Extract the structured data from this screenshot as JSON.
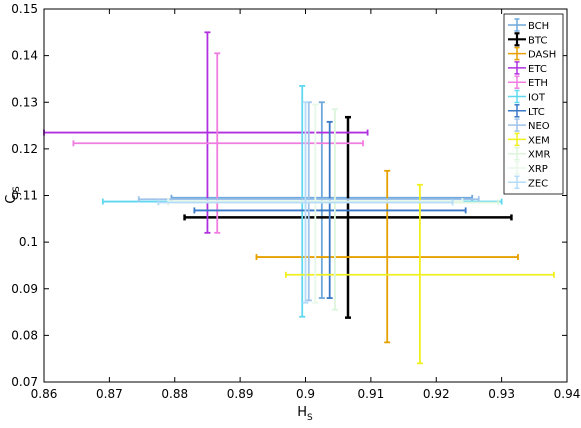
{
  "chart_data": {
    "type": "scatter",
    "title": "",
    "xlabel": "H",
    "xlabel_sub": "S",
    "ylabel": "C",
    "ylabel_sub": "JS",
    "xlim": [
      0.86,
      0.94
    ],
    "ylim": [
      0.07,
      0.15
    ],
    "xticks": [
      "0.86",
      "0.87",
      "0.88",
      "0.89",
      "0.9",
      "0.91",
      "0.92",
      "0.93",
      "0.94"
    ],
    "yticks": [
      "0.07",
      "0.08",
      "0.09",
      "0.1",
      "0.11",
      "0.12",
      "0.13",
      "0.14",
      "0.15"
    ],
    "grid": false,
    "legend_position": "top-right",
    "series": [
      {
        "name": "BCH",
        "color": "#6fa8dc",
        "x": 0.9025,
        "x_err": [
          0.8795,
          0.9255
        ],
        "y": 0.1095,
        "y_err": [
          0.088,
          0.13
        ]
      },
      {
        "name": "BTC",
        "color": "#000000",
        "x": 0.9065,
        "x_err": [
          0.8815,
          0.9315
        ],
        "y": 0.1053,
        "y_err": [
          0.0838,
          0.1268
        ]
      },
      {
        "name": "DASH",
        "color": "#e6a000",
        "x": 0.9125,
        "x_err": [
          0.8925,
          0.9325
        ],
        "y": 0.0968,
        "y_err": [
          0.0785,
          0.1153
        ]
      },
      {
        "name": "ETC",
        "color": "#b030e0",
        "x": 0.885,
        "x_err": [
          0.86,
          0.9095
        ],
        "y": 0.1235,
        "y_err": [
          0.102,
          0.145
        ]
      },
      {
        "name": "ETH",
        "color": "#f07ce0",
        "x": 0.8865,
        "x_err": [
          0.8645,
          0.9088
        ],
        "y": 0.1212,
        "y_err": [
          0.102,
          0.1405
        ]
      },
      {
        "name": "IOT",
        "color": "#5fd8f0",
        "x": 0.8995,
        "x_err": [
          0.869,
          0.93
        ],
        "y": 0.1087,
        "y_err": [
          0.084,
          0.1335
        ]
      },
      {
        "name": "LTC",
        "color": "#3a78c8",
        "x": 0.9037,
        "x_err": [
          0.883,
          0.9245
        ],
        "y": 0.1068,
        "y_err": [
          0.088,
          0.1258
        ]
      },
      {
        "name": "NEO",
        "color": "#9fc3ea",
        "x": 0.9005,
        "x_err": [
          0.8745,
          0.9265
        ],
        "y": 0.1092,
        "y_err": [
          0.0875,
          0.13
        ]
      },
      {
        "name": "XEM",
        "color": "#f0f020",
        "x": 0.9175,
        "x_err": [
          0.897,
          0.938
        ],
        "y": 0.093,
        "y_err": [
          0.074,
          0.1123
        ]
      },
      {
        "name": "XMR",
        "color": "#dcf5dc",
        "x": 0.9045,
        "x_err": [
          0.879,
          0.9295
        ],
        "y": 0.1085,
        "y_err": [
          0.0855,
          0.1285
        ]
      },
      {
        "name": "XRP",
        "color": "#e8f8e8",
        "x": 0.9015,
        "x_err": [
          0.879,
          0.924
        ],
        "y": 0.1088,
        "y_err": [
          0.087,
          0.1295
        ]
      },
      {
        "name": "ZEC",
        "color": "#b4dcf8",
        "x": 0.9,
        "x_err": [
          0.8775,
          0.9225
        ],
        "y": 0.1085,
        "y_err": [
          0.087,
          0.13
        ]
      }
    ]
  }
}
